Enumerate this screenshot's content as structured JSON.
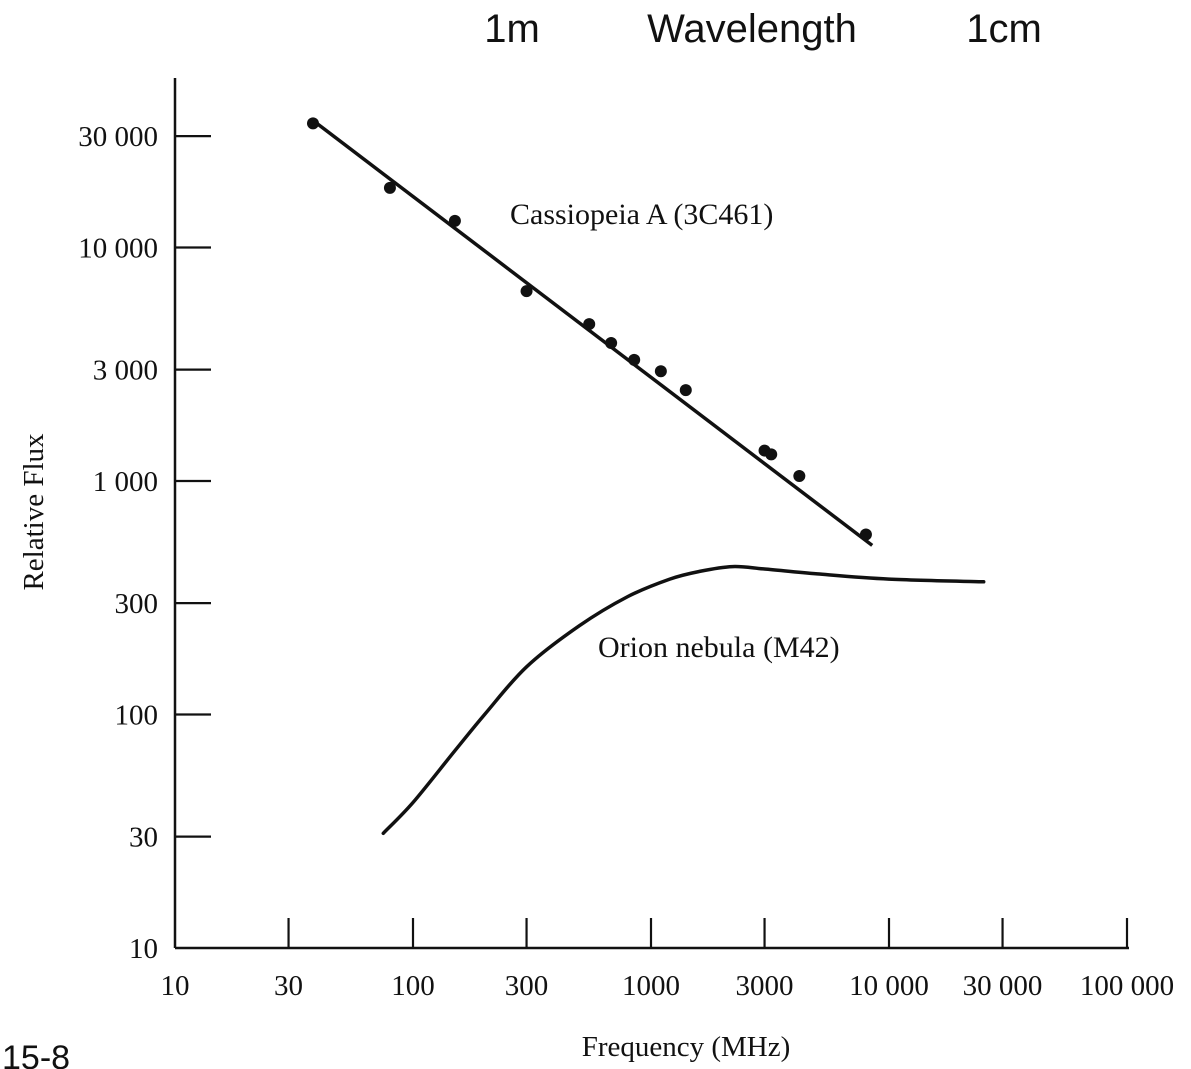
{
  "chart_data": {
    "type": "line",
    "title": "",
    "xlabel": "Frequency (MHz)",
    "ylabel": "Relative Flux",
    "xscale": "log",
    "yscale": "log",
    "xlim": [
      10,
      100000
    ],
    "ylim": [
      10,
      50000
    ],
    "x_ticks": [
      10,
      30,
      100,
      300,
      1000,
      3000,
      10000,
      30000,
      100000
    ],
    "x_tick_labels": [
      "10",
      "30",
      "100",
      "300",
      "1000",
      "3000",
      "10 000",
      "30 000",
      "100 000"
    ],
    "y_ticks": [
      10,
      30,
      100,
      300,
      1000,
      3000,
      10000,
      30000
    ],
    "y_tick_labels": [
      "10",
      "30",
      "100",
      "300",
      "1 000",
      "3 000",
      "10 000",
      "30 000"
    ],
    "grid": false,
    "legend": "none",
    "top_axis": {
      "labels": [
        "1m",
        "Wavelength",
        "1cm"
      ]
    },
    "corner_label": "15-8",
    "series": [
      {
        "name": "Cassiopeia A (3C461)",
        "line": {
          "x": [
            38,
            8500
          ],
          "y": [
            35000,
            530
          ]
        },
        "points": {
          "x": [
            38,
            80,
            150,
            300,
            550,
            680,
            850,
            1100,
            1400,
            3000,
            3200,
            4200,
            8000
          ],
          "y": [
            34000,
            18000,
            13000,
            6500,
            4700,
            3900,
            3300,
            2950,
            2450,
            1350,
            1300,
            1050,
            590
          ]
        }
      },
      {
        "name": "Orion nebula (M42)",
        "x": [
          75,
          100,
          150,
          200,
          300,
          500,
          800,
          1200,
          1600,
          2200,
          3000,
          5000,
          10000,
          25000
        ],
        "y": [
          31,
          42,
          70,
          100,
          160,
          240,
          320,
          380,
          410,
          430,
          420,
          400,
          380,
          370
        ]
      }
    ]
  }
}
